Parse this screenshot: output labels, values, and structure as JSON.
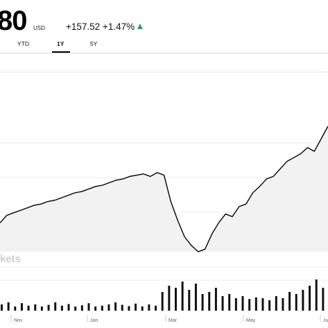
{
  "quote": {
    "price": "80",
    "currency": "USD",
    "change": "+157.52",
    "change_percent": "+1.47%",
    "direction_icon": "up-arrow-icon",
    "up_color": "#23a26d"
  },
  "tabs": [
    {
      "label": "YTD",
      "active": false
    },
    {
      "label": "1Y",
      "active": true
    },
    {
      "label": "5Y",
      "active": false
    }
  ],
  "chart": {
    "watermark": "kets",
    "months": [
      "Nov",
      "Jan",
      "Mar",
      "May",
      "Ju"
    ],
    "line_color": "#111111",
    "fill_color": "#f2f2f2"
  },
  "chart_data": {
    "type": "area",
    "title": "",
    "xlabel": "",
    "ylabel": "",
    "x_tick_labels": [
      "Nov",
      "Jan",
      "Mar",
      "May",
      "Ju"
    ],
    "series": [
      {
        "values": [
          0.23,
          0.29,
          0.31,
          0.33,
          0.35,
          0.37,
          0.38,
          0.4,
          0.41,
          0.43,
          0.45,
          0.47,
          0.48,
          0.5,
          0.52,
          0.53,
          0.55,
          0.57,
          0.58,
          0.6,
          0.61,
          0.62,
          0.6,
          0.63,
          0.61,
          0.4,
          0.25,
          0.12,
          0.05,
          0.0,
          0.02,
          0.14,
          0.23,
          0.3,
          0.28,
          0.36,
          0.38,
          0.47,
          0.52,
          0.58,
          0.6,
          0.66,
          0.72,
          0.75,
          0.78,
          0.83,
          0.8,
          0.9,
          1.0
        ]
      }
    ],
    "volume": [
      0.15,
      0.2,
      0.1,
      0.18,
      0.12,
      0.15,
      0.1,
      0.14,
      0.2,
      0.12,
      0.16,
      0.1,
      0.13,
      0.18,
      0.1,
      0.12,
      0.15,
      0.2,
      0.14,
      0.11,
      0.17,
      0.1,
      0.15,
      0.12,
      0.45,
      0.6,
      0.55,
      0.7,
      0.5,
      0.65,
      0.4,
      0.45,
      0.55,
      0.35,
      0.4,
      0.3,
      0.35,
      0.28,
      0.32,
      0.3,
      0.25,
      0.35,
      0.3,
      0.45,
      0.4,
      0.5,
      0.6,
      0.75,
      0.55
    ],
    "grid": true
  }
}
